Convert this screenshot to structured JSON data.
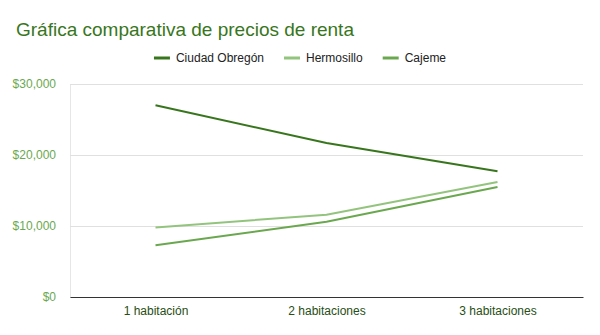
{
  "chart_data": {
    "type": "line",
    "title": "Gráfica comparativa de precios de renta",
    "categories": [
      "1 habitación",
      "2 habitaciones",
      "3 habitaciones"
    ],
    "series": [
      {
        "name": "Ciudad Obregón",
        "color": "#38761d",
        "values": [
          27000,
          21700,
          17700
        ]
      },
      {
        "name": "Hermosillo",
        "color": "#93c47d",
        "values": [
          9800,
          11600,
          16200
        ]
      },
      {
        "name": "Cajeme",
        "color": "#6aa84f",
        "values": [
          7300,
          10600,
          15500
        ]
      }
    ],
    "ylim": [
      0,
      30000
    ],
    "yticks": [
      {
        "value": 0,
        "label": "$0"
      },
      {
        "value": 10000,
        "label": "$10,000"
      },
      {
        "value": 20000,
        "label": "$20,000"
      },
      {
        "value": 30000,
        "label": "$30,000"
      }
    ],
    "grid": true,
    "legend": "top"
  }
}
